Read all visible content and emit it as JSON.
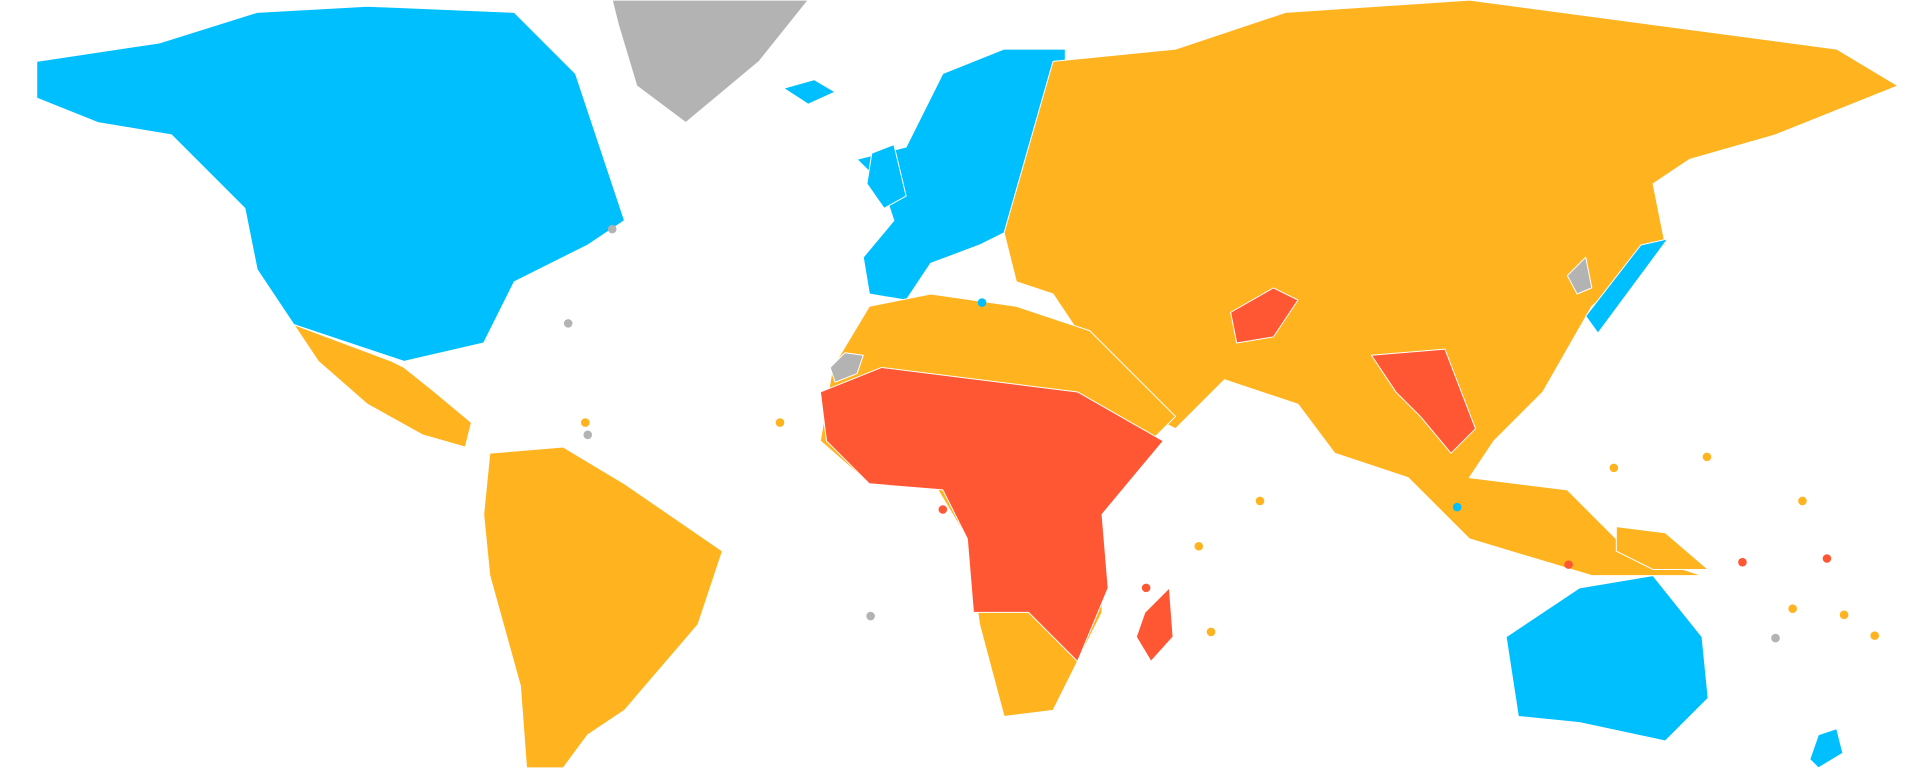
{
  "map": {
    "category_colors": [
      "#00bfff",
      "#ffb31f",
      "#ff5733",
      "#b3b3b3"
    ]
  }
}
